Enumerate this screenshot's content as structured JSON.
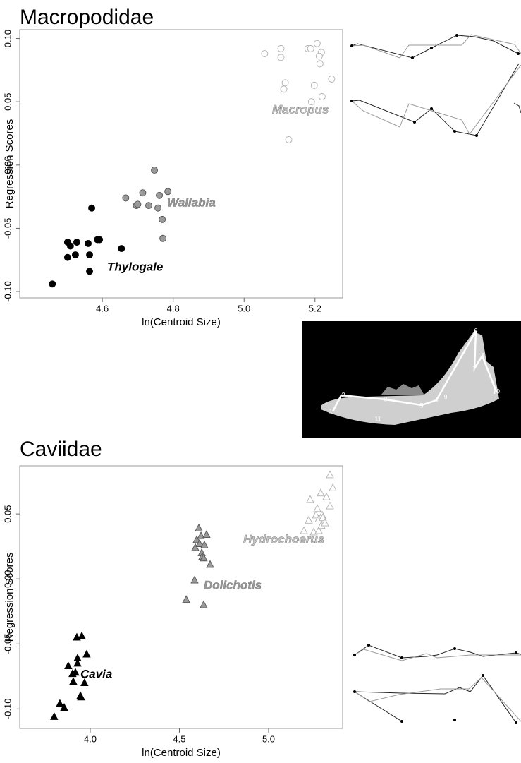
{
  "chart_data": [
    {
      "type": "scatter",
      "title": "Macropodidae",
      "xlabel": "ln(Centroid Size)",
      "ylabel": "Regression Scores",
      "xlim": [
        4.367,
        5.278
      ],
      "ylim": [
        -0.105,
        0.107
      ],
      "xticks": [
        4.6,
        4.8,
        {
          "value": 5.0,
          "label": "5.0"
        },
        5.2
      ],
      "yticks": [
        {
          "value": -0.1,
          "label": "-0.10"
        },
        -0.05,
        {
          "value": 0,
          "label": "0.00"
        },
        0.05,
        {
          "value": 0.1,
          "label": "0.10"
        }
      ],
      "series": [
        {
          "name": "Thylogale",
          "marker": "circle",
          "color": "#000000",
          "x": [
            4.459,
            4.502,
            4.51,
            4.528,
            4.502,
            4.524,
            4.56,
            4.564,
            4.57,
            4.564,
            4.586,
            4.592,
            4.654
          ],
          "values": [
            -0.094,
            -0.061,
            -0.064,
            -0.061,
            -0.073,
            -0.071,
            -0.062,
            -0.071,
            -0.034,
            -0.084,
            -0.059,
            -0.059,
            -0.066
          ]
        },
        {
          "name": "Wallabia",
          "marker": "circle",
          "color": "#999999",
          "x": [
            4.666,
            4.696,
            4.7,
            4.714,
            4.731,
            4.747,
            4.757,
            4.761,
            4.769,
            4.771,
            4.785
          ],
          "values": [
            -0.026,
            -0.032,
            -0.031,
            -0.022,
            -0.032,
            -0.004,
            -0.034,
            -0.024,
            -0.043,
            -0.058,
            -0.021
          ]
        },
        {
          "name": "Macropus",
          "marker": "open-circle",
          "color": "#b0b0b0",
          "x": [
            5.058,
            5.104,
            5.104,
            5.116,
            5.112,
            5.126,
            5.18,
            5.188,
            5.206,
            5.218,
            5.212,
            5.214,
            5.198,
            5.19,
            5.22,
            5.247
          ],
          "values": [
            0.088,
            0.092,
            0.085,
            0.065,
            0.06,
            0.02,
            0.092,
            0.092,
            0.096,
            0.089,
            0.086,
            0.08,
            0.063,
            0.05,
            0.054,
            0.068
          ]
        }
      ]
    },
    {
      "type": "scatter",
      "title": "Caviidae",
      "xlabel": "ln(Centroid Size)",
      "ylabel": "Regression Scores",
      "xlim": [
        3.605,
        5.415
      ],
      "ylim": [
        -0.115,
        0.087
      ],
      "xticks": [
        {
          "value": 4.0,
          "label": "4.0"
        },
        4.5,
        {
          "value": 5.0,
          "label": "5.0"
        }
      ],
      "yticks": [
        {
          "value": -0.1,
          "label": "-0.10"
        },
        -0.05,
        {
          "value": 0,
          "label": "0.00"
        },
        0.05
      ],
      "series": [
        {
          "name": "Cavia",
          "marker": "triangle",
          "color": "#000000",
          "x": [
            3.798,
            3.83,
            3.854,
            3.877,
            3.901,
            3.905,
            3.917,
            3.929,
            3.929,
            3.953,
            3.945,
            3.949,
            3.968,
            3.98,
            3.925
          ],
          "values": [
            -0.106,
            -0.096,
            -0.099,
            -0.067,
            -0.073,
            -0.079,
            -0.072,
            -0.061,
            -0.065,
            -0.044,
            -0.09,
            -0.091,
            -0.08,
            -0.058,
            -0.045
          ]
        },
        {
          "name": "Dolichotis",
          "marker": "triangle",
          "color": "#999999",
          "x": [
            4.538,
            4.585,
            4.589,
            4.597,
            4.609,
            4.613,
            4.621,
            4.625,
            4.628,
            4.64,
            4.636,
            4.652,
            4.672,
            4.636
          ],
          "values": [
            -0.016,
            -0.001,
            0.024,
            0.03,
            0.039,
            0.027,
            0.033,
            0.02,
            0.017,
            0.026,
            0.016,
            0.034,
            0.011,
            -0.02
          ]
        },
        {
          "name": "Hydrochoerus",
          "marker": "open-triangle",
          "color": "#b0b0b0",
          "x": [
            5.198,
            5.225,
            5.233,
            5.253,
            5.265,
            5.273,
            5.281,
            5.281,
            5.292,
            5.296,
            5.3,
            5.304,
            5.316,
            5.324,
            5.344,
            5.344,
            5.36
          ],
          "values": [
            0.037,
            0.045,
            0.061,
            0.036,
            0.049,
            0.054,
            0.046,
            0.037,
            0.066,
            0.041,
            0.049,
            0.047,
            0.043,
            0.063,
            0.056,
            0.08,
            0.07
          ]
        }
      ]
    }
  ],
  "landmarks": [
    "1",
    "2",
    "3",
    "4",
    "5",
    "6",
    "7",
    "8",
    "9",
    "10",
    "11"
  ]
}
